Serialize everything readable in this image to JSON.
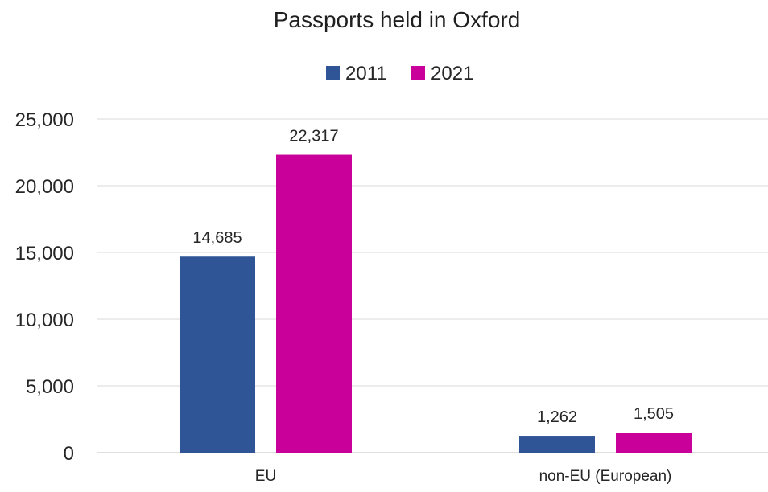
{
  "chart_data": {
    "type": "bar",
    "title": "Passports held in Oxford",
    "categories": [
      "EU",
      "non-EU (European)"
    ],
    "series": [
      {
        "name": "2011",
        "color": "#2F5597",
        "values": [
          14685,
          1262
        ],
        "labels": [
          "14,685",
          "1,262"
        ]
      },
      {
        "name": "2021",
        "color": "#C9009A",
        "values": [
          22317,
          1505
        ],
        "labels": [
          "22,317",
          "1,505"
        ]
      }
    ],
    "ylim": [
      0,
      25000
    ],
    "yticks": [
      0,
      5000,
      10000,
      15000,
      20000,
      25000
    ],
    "ytick_labels": [
      "0",
      "5,000",
      "10,000",
      "15,000",
      "20,000",
      "25,000"
    ],
    "xlabel": "",
    "ylabel": "",
    "grid": true,
    "legend_position": "top"
  }
}
